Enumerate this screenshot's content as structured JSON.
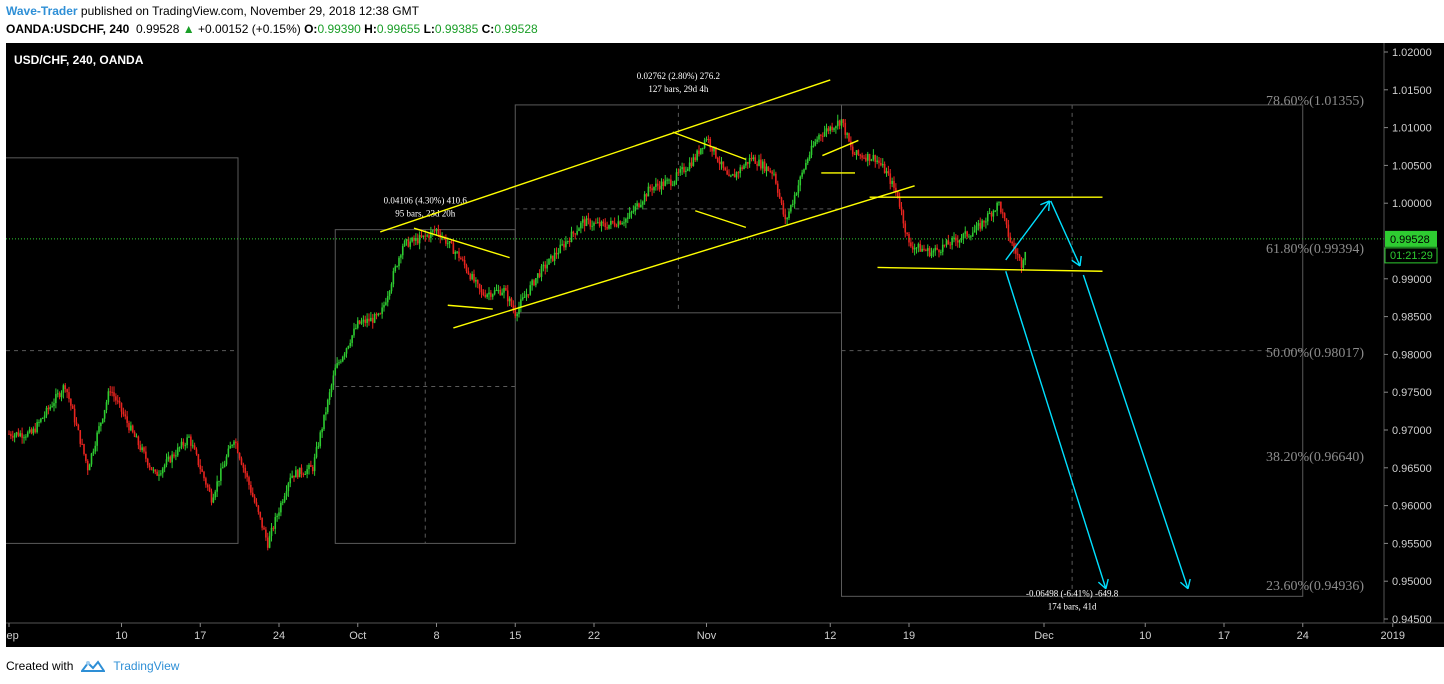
{
  "header": {
    "publisher": "Wave-Trader",
    "published_text": " published on TradingView.com, November 29, 2018 12:38 GMT",
    "symbol": "OANDA:USDCHF, 240",
    "last": "0.99528",
    "change_arrow": "▲",
    "change": "+0.00152 (+0.15%)",
    "o_label": "O:",
    "o": "0.99390",
    "h_label": "H:",
    "h": "0.99655",
    "l_label": "L:",
    "l": "0.99385",
    "c_label": "C:",
    "c": "0.99528"
  },
  "footer": {
    "created_with": "Created with",
    "brand": "TradingView",
    "logo_icon": "tradingview-logo-icon"
  },
  "colors": {
    "background": "#000000",
    "up_candle": "#2ecc31",
    "down_candle": "#e8241f",
    "trendline": "#ffff00",
    "projection": "#00e0ff",
    "fib_text": "#8c8c8c",
    "box": "#5a5a5a",
    "price_line": "#2ecc31"
  },
  "chart_data": {
    "type": "candlestick",
    "title": "USD/CHF, 240, OANDA",
    "ylim": [
      0.945,
      1.02
    ],
    "y_ticks": [
      "1.02000",
      "1.01500",
      "1.01000",
      "1.00500",
      "1.00000",
      "0.99500",
      "0.99000",
      "0.98500",
      "0.98000",
      "0.97500",
      "0.97000",
      "0.96500",
      "0.96000",
      "0.95500",
      "0.95000",
      "0.94500"
    ],
    "x_ticks": [
      {
        "label": "Sep",
        "day": 0
      },
      {
        "label": "10",
        "day": 10
      },
      {
        "label": "17",
        "day": 17
      },
      {
        "label": "24",
        "day": 24
      },
      {
        "label": "Oct",
        "day": 31
      },
      {
        "label": "8",
        "day": 38
      },
      {
        "label": "15",
        "day": 45
      },
      {
        "label": "22",
        "day": 52
      },
      {
        "label": "Nov",
        "day": 62
      },
      {
        "label": "12",
        "day": 73
      },
      {
        "label": "19",
        "day": 80
      },
      {
        "label": "Dec",
        "day": 92
      },
      {
        "label": "10",
        "day": 101
      },
      {
        "label": "17",
        "day": 108
      },
      {
        "label": "24",
        "day": 115
      },
      {
        "label": "2019",
        "day": 123
      }
    ],
    "price_path": [
      [
        2,
        0.9695
      ],
      [
        5,
        0.976
      ],
      [
        7,
        0.965
      ],
      [
        9,
        0.9755
      ],
      [
        11,
        0.9695
      ],
      [
        13,
        0.964
      ],
      [
        16,
        0.969
      ],
      [
        18,
        0.961
      ],
      [
        20,
        0.969
      ],
      [
        23,
        0.955
      ],
      [
        25,
        0.964
      ],
      [
        27,
        0.965
      ],
      [
        29,
        0.978
      ],
      [
        31,
        0.984
      ],
      [
        33,
        0.985
      ],
      [
        35,
        0.9945
      ],
      [
        37,
        0.9955
      ],
      [
        38,
        0.9965
      ],
      [
        40,
        0.993
      ],
      [
        42,
        0.988
      ],
      [
        44,
        0.9885
      ],
      [
        45,
        0.9855
      ],
      [
        47,
        0.9905
      ],
      [
        49,
        0.994
      ],
      [
        51,
        0.9975
      ],
      [
        53,
        0.997
      ],
      [
        55,
        0.998
      ],
      [
        57,
        1.002
      ],
      [
        59,
        1.003
      ],
      [
        61,
        1.006
      ],
      [
        62,
        1.0088
      ],
      [
        64,
        1.003
      ],
      [
        66,
        1.006
      ],
      [
        68,
        1.004
      ],
      [
        69,
        0.9975
      ],
      [
        71,
        1.006
      ],
      [
        72,
        1.009
      ],
      [
        74,
        1.011
      ],
      [
        75,
        1.0065
      ],
      [
        77,
        1.006
      ],
      [
        78,
        1.004
      ],
      [
        79,
        1.001
      ],
      [
        80,
        0.9945
      ],
      [
        82,
        0.9935
      ],
      [
        84,
        0.995
      ],
      [
        86,
        0.9965
      ],
      [
        88,
        1.0
      ],
      [
        89,
        0.995
      ],
      [
        90,
        0.992
      ],
      [
        90.5,
        0.995
      ]
    ],
    "current_price": "0.99528",
    "countdown": "01:21:29",
    "fib_levels": [
      {
        "label": "78.60%(1.01355)",
        "price": 1.01355
      },
      {
        "label": "61.80%(0.99394)",
        "price": 0.99394
      },
      {
        "label": "50.00%(0.98017)",
        "price": 0.98017
      },
      {
        "label": "38.20%(0.96640)",
        "price": 0.9664
      },
      {
        "label": "23.60%(0.94936)",
        "price": 0.94936
      }
    ],
    "measurements": [
      {
        "line1": "0.04106 (4.30%) 410.6",
        "line2": "95 bars, 23d 20h",
        "from_day": 29,
        "to_day": 45,
        "from_price": 0.955,
        "to_price": 0.9965
      },
      {
        "line1": "0.02762 (2.80%) 276.2",
        "line2": "127 bars, 29d 4h",
        "from_day": 45,
        "to_day": 74,
        "from_price": 0.9855,
        "to_price": 1.013
      },
      {
        "line1": "-0.06498 (-6.41%) -649.8",
        "line2": "174 bars, 41d",
        "from_day": 74,
        "to_day": 115,
        "from_price": 1.013,
        "to_price": 0.948
      }
    ],
    "gridlines": false,
    "legend": "none"
  }
}
